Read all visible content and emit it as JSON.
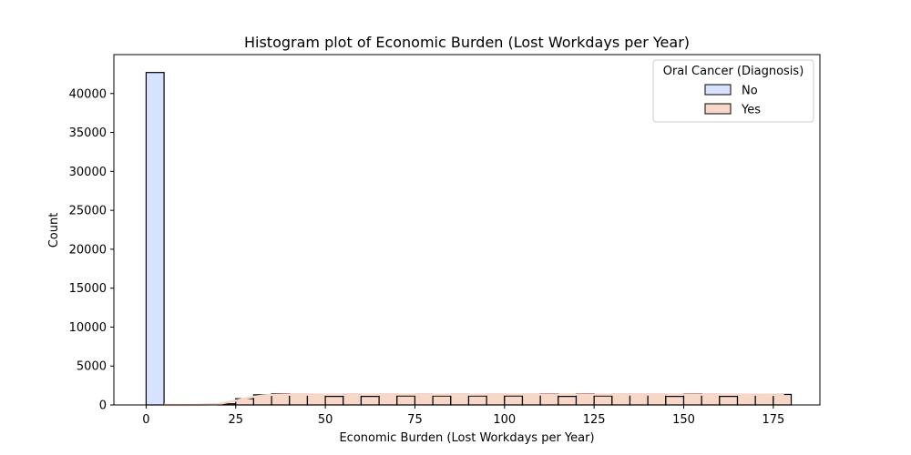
{
  "chart_data": {
    "type": "bar",
    "subtype": "histogram",
    "title": "Histogram plot of Economic Burden (Lost Workdays per Year)",
    "xlabel": "Economic Burden (Lost Workdays per Year)",
    "ylabel": "Count",
    "xlim": [
      -9,
      188
    ],
    "ylim": [
      0,
      45000
    ],
    "xticks": [
      0,
      25,
      50,
      75,
      100,
      125,
      150,
      175
    ],
    "yticks": [
      0,
      5000,
      10000,
      15000,
      20000,
      25000,
      30000,
      35000,
      40000
    ],
    "bin_width": 5,
    "grid": false,
    "kde": true,
    "legend": {
      "title": "Oral Cancer (Diagnosis)",
      "placement": "top-right",
      "entries": [
        "No",
        "Yes"
      ]
    },
    "series": [
      {
        "name": "No",
        "color": "#d6e2ff",
        "bins": [
          {
            "x0": 0,
            "x1": 5,
            "count": 42700
          }
        ]
      },
      {
        "name": "Yes",
        "color": "#f7d7c7",
        "bins": [
          {
            "x0": 20,
            "x1": 25,
            "count": 150
          },
          {
            "x0": 25,
            "x1": 30,
            "count": 800
          },
          {
            "x0": 30,
            "x1": 35,
            "count": 1300
          },
          {
            "x0": 35,
            "x1": 40,
            "count": 1450
          },
          {
            "x0": 40,
            "x1": 45,
            "count": 1400
          },
          {
            "x0": 45,
            "x1": 50,
            "count": 1300
          },
          {
            "x0": 50,
            "x1": 55,
            "count": 1100
          },
          {
            "x0": 55,
            "x1": 60,
            "count": 1400
          },
          {
            "x0": 60,
            "x1": 65,
            "count": 1100
          },
          {
            "x0": 65,
            "x1": 70,
            "count": 1400
          },
          {
            "x0": 70,
            "x1": 75,
            "count": 1150
          },
          {
            "x0": 75,
            "x1": 80,
            "count": 1400
          },
          {
            "x0": 80,
            "x1": 85,
            "count": 1150
          },
          {
            "x0": 85,
            "x1": 90,
            "count": 1400
          },
          {
            "x0": 90,
            "x1": 95,
            "count": 1150
          },
          {
            "x0": 95,
            "x1": 100,
            "count": 1400
          },
          {
            "x0": 100,
            "x1": 105,
            "count": 1150
          },
          {
            "x0": 105,
            "x1": 110,
            "count": 1400
          },
          {
            "x0": 110,
            "x1": 115,
            "count": 1450
          },
          {
            "x0": 115,
            "x1": 120,
            "count": 1100
          },
          {
            "x0": 120,
            "x1": 125,
            "count": 1450
          },
          {
            "x0": 125,
            "x1": 130,
            "count": 1150
          },
          {
            "x0": 130,
            "x1": 135,
            "count": 1400
          },
          {
            "x0": 135,
            "x1": 140,
            "count": 1400
          },
          {
            "x0": 140,
            "x1": 145,
            "count": 1400
          },
          {
            "x0": 145,
            "x1": 150,
            "count": 1100
          },
          {
            "x0": 150,
            "x1": 155,
            "count": 1450
          },
          {
            "x0": 155,
            "x1": 160,
            "count": 1400
          },
          {
            "x0": 160,
            "x1": 165,
            "count": 1100
          },
          {
            "x0": 165,
            "x1": 170,
            "count": 1350
          },
          {
            "x0": 170,
            "x1": 175,
            "count": 1350
          },
          {
            "x0": 175,
            "x1": 180,
            "count": 1350
          }
        ]
      }
    ],
    "kde_yes": [
      [
        5,
        0
      ],
      [
        10,
        5
      ],
      [
        15,
        20
      ],
      [
        20,
        120
      ],
      [
        25,
        550
      ],
      [
        30,
        1050
      ],
      [
        35,
        1300
      ],
      [
        40,
        1350
      ],
      [
        50,
        1330
      ],
      [
        60,
        1330
      ],
      [
        70,
        1340
      ],
      [
        80,
        1330
      ],
      [
        90,
        1330
      ],
      [
        100,
        1340
      ],
      [
        110,
        1350
      ],
      [
        120,
        1340
      ],
      [
        130,
        1330
      ],
      [
        140,
        1340
      ],
      [
        150,
        1350
      ],
      [
        160,
        1330
      ],
      [
        170,
        1330
      ],
      [
        175,
        1300
      ],
      [
        178,
        1250
      ]
    ]
  }
}
